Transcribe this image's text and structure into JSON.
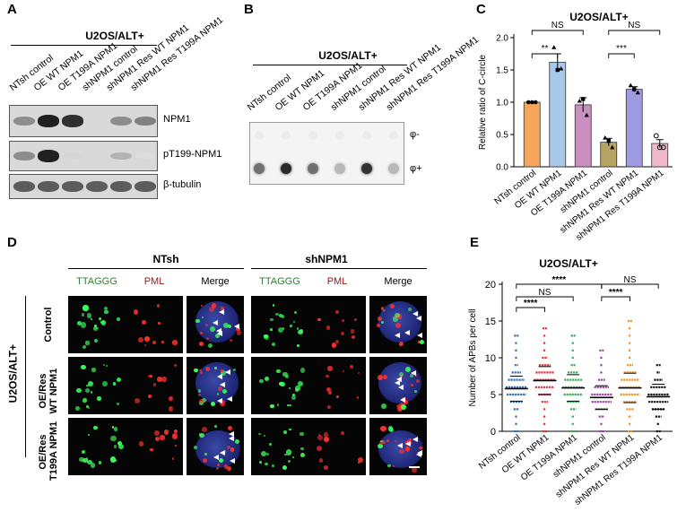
{
  "panels": {
    "a": "A",
    "b": "B",
    "c": "C",
    "d": "D",
    "e": "E"
  },
  "cell_line": "U2OS/ALT+",
  "panel_a": {
    "lanes": [
      "NTsh control",
      "OE WT NPM1",
      "OE T199A NPM1",
      "shNPM1 control",
      "shNPM1 Res WT NPM1",
      "shNPM1 Res T199A NPM1"
    ],
    "blots": [
      "NPM1",
      "pT199-NPM1",
      "β-tubulin"
    ],
    "band_intensity": [
      [
        0.55,
        0.95,
        0.9,
        0.05,
        0.55,
        0.6
      ],
      [
        0.55,
        0.95,
        0.1,
        0.05,
        0.35,
        0.02
      ],
      [
        0.75,
        0.75,
        0.75,
        0.75,
        0.75,
        0.75
      ]
    ]
  },
  "panel_b": {
    "lanes": [
      "NTsh control",
      "OE WT NPM1",
      "OE T199A NPM1",
      "shNPM1 control",
      "shNPM1 Res WT NPM1",
      "shNPM1 Res T199A NPM1"
    ],
    "strands": [
      "φ-",
      "φ+"
    ],
    "dot_intensity_plus": [
      0.55,
      0.9,
      0.55,
      0.2,
      0.85,
      0.2
    ]
  },
  "chart_data": [
    {
      "type": "bar",
      "title": "U2OS/ALT+",
      "ylabel": "Relative ratio of C-circle",
      "ylim": [
        0,
        2.0
      ],
      "yticks": [
        "0.0",
        "0.5",
        "1.0",
        "1.5",
        "2.0"
      ],
      "categories": [
        "NTsh control",
        "OE WT NPM1",
        "OE T199A NPM1",
        "shNPM1 control",
        "shNPM1 Res WT NPM1",
        "shNPM1 Res T199A NPM1"
      ],
      "values": [
        1.0,
        1.62,
        0.96,
        0.38,
        1.2,
        0.36
      ],
      "errors": [
        0.0,
        0.13,
        0.11,
        0.06,
        0.04,
        0.06
      ],
      "points": [
        [
          1.0,
          1.0,
          1.0
        ],
        [
          1.85,
          1.5,
          1.52
        ],
        [
          1.02,
          1.05,
          0.8
        ],
        [
          0.45,
          0.4,
          0.3
        ],
        [
          1.26,
          1.2,
          1.15
        ],
        [
          0.48,
          0.3,
          0.3
        ]
      ],
      "colors": [
        "#f7a55a",
        "#a8c8ea",
        "#c98fc0",
        "#b5a463",
        "#9f9be0",
        "#f0b8c8"
      ],
      "significance": [
        {
          "from": 0,
          "to": 1,
          "label": "**"
        },
        {
          "from": 0,
          "to": 2,
          "label": "NS"
        },
        {
          "from": 3,
          "to": 4,
          "label": "***"
        },
        {
          "from": 3,
          "to": 5,
          "label": "NS"
        }
      ]
    },
    {
      "type": "scatter",
      "title": "U2OS/ALT+",
      "ylabel": "Number of APBs per cell",
      "ylim": [
        0,
        20
      ],
      "yticks": [
        "0",
        "5",
        "10",
        "15",
        "20"
      ],
      "categories": [
        "NTsh control",
        "OE WT NPM1",
        "OE T199A NPM1",
        "shNPM1 control",
        "shNPM1 Res WT NPM1",
        "shNPM1 Res T199A NPM1"
      ],
      "means": [
        5.8,
        6.9,
        5.9,
        4.6,
        5.9,
        4.7
      ],
      "sd": [
        1.7,
        1.9,
        1.8,
        1.6,
        2.0,
        1.7
      ],
      "max": [
        13,
        14,
        13,
        11,
        15,
        9
      ],
      "colors": [
        "#2f6fb3",
        "#e0333a",
        "#3aa853",
        "#9b3ea6",
        "#f39225",
        "#111111"
      ],
      "significance": [
        {
          "from": 0,
          "to": 1,
          "label": "****"
        },
        {
          "from": 0,
          "to": 2,
          "label": "NS"
        },
        {
          "from": 0,
          "to": 3,
          "label": "****"
        },
        {
          "from": 3,
          "to": 4,
          "label": "****"
        },
        {
          "from": 3,
          "to": 5,
          "label": "NS"
        }
      ]
    }
  ],
  "panel_d": {
    "groups": [
      "NTsh",
      "shNPM1"
    ],
    "channels": [
      "TTAGGG",
      "PML",
      "Merge"
    ],
    "rows": [
      "Control",
      "OE/Res WT NPM1",
      "OE/Res T199A NPM1"
    ],
    "channel_colors": {
      "TTAGGG": "#2e7d32",
      "PML": "#8b1a1a",
      "Merge": "#000000"
    }
  }
}
